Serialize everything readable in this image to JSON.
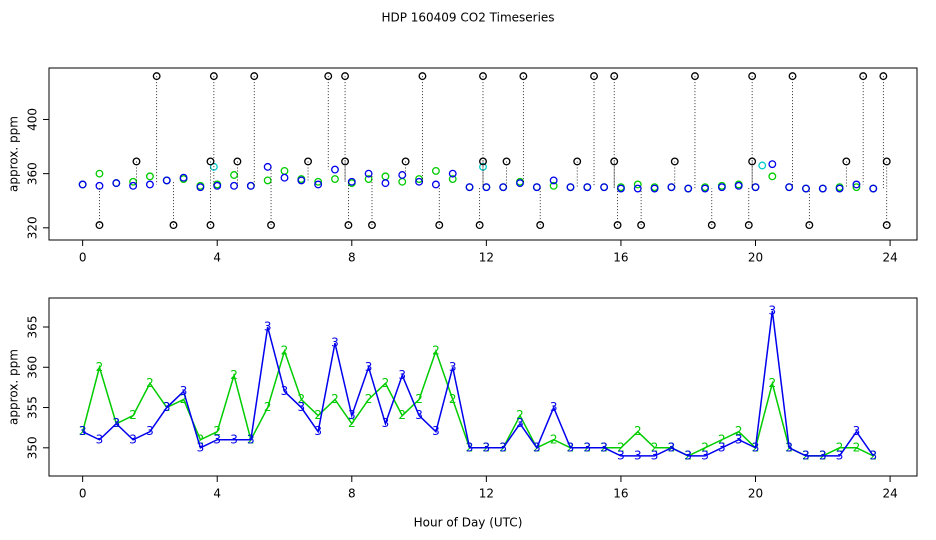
{
  "chart_data": [
    {
      "type": "scatter",
      "title": "HDP  160409  CO2 Timeseries",
      "y_label": "approx. ppm",
      "xlim": [
        -1,
        24.8
      ],
      "ylim": [
        311,
        438
      ],
      "xticks": [
        0,
        4,
        8,
        12,
        16,
        20,
        24
      ],
      "yticks": [
        320,
        360,
        400
      ],
      "series": [
        {
          "color": "#00cc00",
          "x": [
            0,
            0.5,
            1,
            1.5,
            2,
            2.5,
            3,
            3.5,
            4,
            4.5,
            5,
            5.5,
            6,
            6.5,
            7,
            7.5,
            8,
            8.5,
            9,
            9.5,
            10,
            10.5,
            11,
            11.5,
            12,
            12.5,
            13,
            13.5,
            14,
            14.5,
            15,
            15.5,
            16,
            16.5,
            17,
            17.5,
            18,
            18.5,
            19,
            19.5,
            20,
            20.5,
            21,
            21.5,
            22,
            22.5,
            23,
            23.5
          ],
          "values": [
            352,
            360,
            353,
            354,
            358,
            355,
            356,
            351,
            352,
            359,
            351,
            355,
            362,
            356,
            354,
            356,
            353,
            356,
            358,
            354,
            356,
            362,
            356,
            350,
            350,
            350,
            354,
            350,
            351,
            350,
            350,
            350,
            350,
            352,
            350,
            350,
            349,
            350,
            351,
            352,
            350,
            358,
            350,
            349,
            349,
            350,
            350,
            349
          ]
        },
        {
          "color": "#0000ee",
          "x": [
            0,
            0.5,
            1,
            1.5,
            2,
            2.5,
            3,
            3.5,
            4,
            4.5,
            5,
            5.5,
            6,
            6.5,
            7,
            7.5,
            8,
            8.5,
            9,
            9.5,
            10,
            10.5,
            11,
            11.5,
            12,
            12.5,
            13,
            13.5,
            14,
            14.5,
            15,
            15.5,
            16,
            16.5,
            17,
            17.5,
            18,
            18.5,
            19,
            19.5,
            20,
            20.5,
            21,
            21.5,
            22,
            22.5,
            23,
            23.5
          ],
          "values": [
            352,
            351,
            353,
            351,
            352,
            355,
            357,
            350,
            351,
            351,
            351,
            365,
            357,
            355,
            352,
            363,
            354,
            360,
            353,
            359,
            354,
            352,
            360,
            350,
            350,
            350,
            353,
            350,
            355,
            350,
            350,
            350,
            349,
            349,
            349,
            350,
            349,
            349,
            350,
            351,
            350,
            367,
            350,
            349,
            349,
            349,
            352,
            349
          ]
        },
        {
          "color": "#00cccc",
          "x": [
            3.9,
            11.9,
            20.2
          ],
          "values": [
            365,
            365,
            366
          ]
        },
        {
          "color": "#000000",
          "x": [
            2.2,
            3.9,
            5.1,
            7.3,
            7.8,
            10.1,
            11.9,
            13.1,
            15.2,
            15.8,
            18.2,
            19.9,
            21.1,
            23.2,
            23.8,
            0.5,
            2.7,
            3.8,
            5.6,
            7.9,
            8.6,
            10.6,
            11.8,
            13.6,
            15.9,
            16.6,
            18.7,
            19.8,
            21.6,
            23.9,
            1.6,
            3.8,
            4.6,
            6.7,
            7.8,
            9.6,
            11.9,
            12.6,
            14.7,
            15.8,
            17.6,
            19.9,
            22.7,
            23.9
          ],
          "values": [
            432,
            432,
            432,
            432,
            432,
            432,
            432,
            432,
            432,
            432,
            432,
            432,
            432,
            432,
            432,
            322,
            322,
            322,
            322,
            322,
            322,
            322,
            322,
            322,
            322,
            322,
            322,
            322,
            322,
            322,
            369,
            369,
            369,
            369,
            369,
            369,
            369,
            369,
            369,
            369,
            369,
            369,
            369,
            369
          ]
        }
      ]
    },
    {
      "type": "line",
      "x_label": "Hour of Day (UTC)",
      "y_label": "approx. ppm",
      "xlim": [
        -1,
        24.8
      ],
      "ylim": [
        346.5,
        368.6
      ],
      "xticks": [
        0,
        4,
        8,
        12,
        16,
        20,
        24
      ],
      "yticks": [
        350,
        355,
        360,
        365
      ],
      "series": [
        {
          "color": "#00cc00",
          "marker": "2",
          "x": [
            0,
            0.5,
            1,
            1.5,
            2,
            2.5,
            3,
            3.5,
            4,
            4.5,
            5,
            5.5,
            6,
            6.5,
            7,
            7.5,
            8,
            8.5,
            9,
            9.5,
            10,
            10.5,
            11,
            11.5,
            12,
            12.5,
            13,
            13.5,
            14,
            14.5,
            15,
            15.5,
            16,
            16.5,
            17,
            17.5,
            18,
            18.5,
            19,
            19.5,
            20,
            20.5,
            21,
            21.5,
            22,
            22.5,
            23,
            23.5
          ],
          "values": [
            352,
            360,
            353,
            354,
            358,
            355,
            356,
            351,
            352,
            359,
            351,
            355,
            362,
            356,
            354,
            356,
            353,
            356,
            358,
            354,
            356,
            362,
            356,
            350,
            350,
            350,
            354,
            350,
            351,
            350,
            350,
            350,
            350,
            352,
            350,
            350,
            349,
            350,
            351,
            352,
            350,
            358,
            350,
            349,
            349,
            350,
            350,
            349
          ]
        },
        {
          "color": "#0000ee",
          "marker": "3",
          "x": [
            0,
            0.5,
            1,
            1.5,
            2,
            2.5,
            3,
            3.5,
            4,
            4.5,
            5,
            5.5,
            6,
            6.5,
            7,
            7.5,
            8,
            8.5,
            9,
            9.5,
            10,
            10.5,
            11,
            11.5,
            12,
            12.5,
            13,
            13.5,
            14,
            14.5,
            15,
            15.5,
            16,
            16.5,
            17,
            17.5,
            18,
            18.5,
            19,
            19.5,
            20,
            20.5,
            21,
            21.5,
            22,
            22.5,
            23,
            23.5
          ],
          "values": [
            352,
            351,
            353,
            351,
            352,
            355,
            357,
            350,
            351,
            351,
            351,
            365,
            357,
            355,
            352,
            363,
            354,
            360,
            353,
            359,
            354,
            352,
            360,
            350,
            350,
            350,
            353,
            350,
            355,
            350,
            350,
            350,
            349,
            349,
            349,
            350,
            349,
            349,
            350,
            351,
            350,
            367,
            350,
            349,
            349,
            349,
            352,
            349
          ]
        }
      ]
    }
  ]
}
